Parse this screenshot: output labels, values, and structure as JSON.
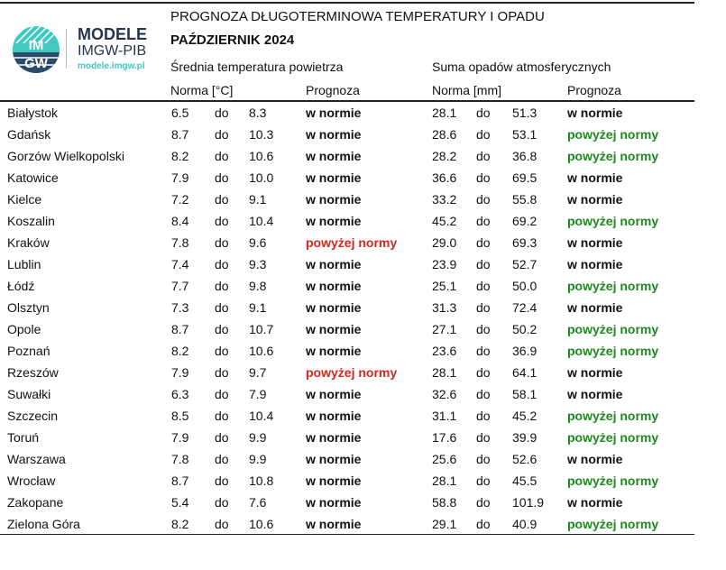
{
  "header": {
    "title": "PROGNOZA DŁUGOTERMINOWA TEMPERATURY I OPADU",
    "month": "PAŹDZIERNIK 2024",
    "temp_section": "Średnia temperatura powietrza",
    "precip_section": "Suma opadów atmosferycznych",
    "temp_norm_col": "Norma [°C]",
    "temp_forecast_col": "Prognoza",
    "precip_norm_col": "Norma [mm]",
    "precip_forecast_col": "Prognoza"
  },
  "logo": {
    "mark": "IMGW",
    "name": "MODELE",
    "org": "IMGW-PIB",
    "url": "modele.imgw.pl"
  },
  "colors": {
    "above": "#1e8a1e",
    "above_temp": "#d7261e"
  },
  "range_word": "do",
  "rows": [
    [
      "Białystok",
      "6.5",
      "8.3",
      "w normie",
      "28.1",
      "51.3",
      "w normie"
    ],
    [
      "Gdańsk",
      "8.7",
      "10.3",
      "w normie",
      "28.6",
      "53.1",
      "powyżej normy"
    ],
    [
      "Gorzów Wielkopolski",
      "8.2",
      "10.6",
      "w normie",
      "28.2",
      "36.8",
      "powyżej normy"
    ],
    [
      "Katowice",
      "7.9",
      "10.0",
      "w normie",
      "36.6",
      "69.5",
      "w normie"
    ],
    [
      "Kielce",
      "7.2",
      "9.1",
      "w normie",
      "33.2",
      "55.8",
      "w normie"
    ],
    [
      "Koszalin",
      "8.4",
      "10.4",
      "w normie",
      "45.2",
      "69.2",
      "powyżej normy"
    ],
    [
      "Kraków",
      "7.8",
      "9.6",
      "powyżej normy",
      "29.0",
      "69.3",
      "w normie"
    ],
    [
      "Lublin",
      "7.4",
      "9.3",
      "w normie",
      "23.9",
      "52.7",
      "w normie"
    ],
    [
      "Łódź",
      "7.7",
      "9.8",
      "w normie",
      "25.1",
      "50.0",
      "powyżej normy"
    ],
    [
      "Olsztyn",
      "7.3",
      "9.1",
      "w normie",
      "31.3",
      "72.4",
      "w normie"
    ],
    [
      "Opole",
      "8.7",
      "10.7",
      "w normie",
      "27.1",
      "50.2",
      "powyżej normy"
    ],
    [
      "Poznań",
      "8.2",
      "10.6",
      "w normie",
      "23.6",
      "36.9",
      "powyżej normy"
    ],
    [
      "Rzeszów",
      "7.9",
      "9.7",
      "powyżej normy",
      "28.1",
      "64.1",
      "w normie"
    ],
    [
      "Suwałki",
      "6.3",
      "7.9",
      "w normie",
      "32.6",
      "58.1",
      "w normie"
    ],
    [
      "Szczecin",
      "8.5",
      "10.4",
      "w normie",
      "31.1",
      "45.2",
      "powyżej normy"
    ],
    [
      "Toruń",
      "7.9",
      "9.9",
      "w normie",
      "17.6",
      "39.9",
      "powyżej normy"
    ],
    [
      "Warszawa",
      "7.8",
      "9.9",
      "w normie",
      "25.6",
      "52.6",
      "w normie"
    ],
    [
      "Wrocław",
      "8.7",
      "10.8",
      "w normie",
      "28.1",
      "45.5",
      "powyżej normy"
    ],
    [
      "Zakopane",
      "5.4",
      "7.6",
      "w normie",
      "58.8",
      "101.9",
      "w normie"
    ],
    [
      "Zielona Góra",
      "8.2",
      "10.6",
      "w normie",
      "29.1",
      "40.9",
      "powyżej normy"
    ]
  ]
}
